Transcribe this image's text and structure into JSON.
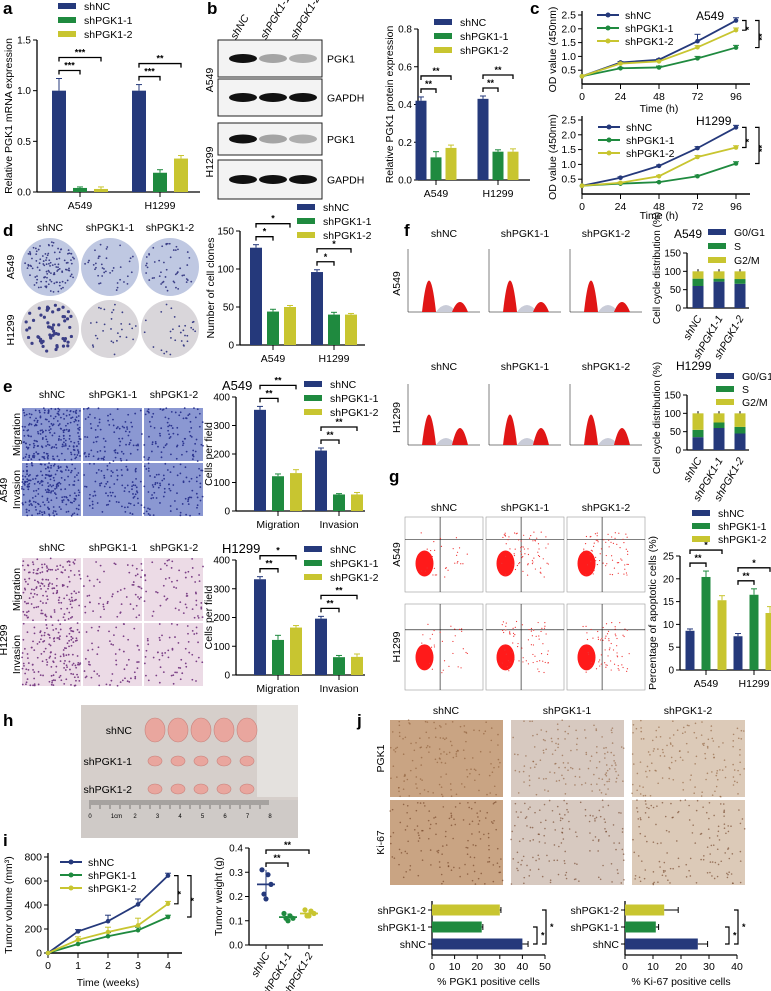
{
  "figure": {
    "panel_labels": [
      "a",
      "b",
      "c",
      "d",
      "e",
      "f",
      "g",
      "h",
      "i",
      "j"
    ]
  },
  "series_colors": [
    "#25397b",
    "#1f8a3f",
    "#c8c530"
  ],
  "groups": [
    "shNC",
    "shPGK1-1",
    "shPGK1-2"
  ],
  "blot": {
    "lanes": [
      "shNC",
      "shPGK1-1",
      "shPGK1-2"
    ],
    "cell_lines": [
      "A549",
      "H1299"
    ],
    "proteins": [
      "PGK1",
      "GAPDH"
    ]
  },
  "colony": {
    "columns": [
      "shNC",
      "shPGK1-1",
      "shPGK1-2"
    ],
    "rows": [
      "A549",
      "H1299"
    ]
  },
  "transwell": {
    "columns": [
      "shNC",
      "shPGK1-1",
      "shPGK1-2"
    ],
    "rows": [
      "Migration",
      "Invasion"
    ],
    "cell_lines": [
      "A549",
      "H1299"
    ]
  },
  "flow_cycle": {
    "columns": [
      "shNC",
      "shPGK1-1",
      "shPGK1-2"
    ],
    "rows": [
      "A549",
      "H1299"
    ]
  },
  "apoptosis": {
    "columns": [
      "shNC",
      "shPGK1-1",
      "shPGK1-2"
    ],
    "rows": [
      "A549",
      "H1299"
    ]
  },
  "tumor_photo": {
    "rows": [
      "shNC",
      "shPGK1-1",
      "shPGK1-2"
    ],
    "ruler": [
      "0",
      "1cm",
      "2",
      "3",
      "4",
      "5",
      "6",
      "7",
      "8"
    ]
  },
  "ihc": {
    "columns": [
      "shNC",
      "shPGK1-1",
      "shPGK1-2"
    ],
    "rows": [
      "PGK1",
      "Ki-67"
    ]
  },
  "chart_data": [
    {
      "id": "a",
      "type": "bar",
      "title": "",
      "categories": [
        "A549",
        "H1299"
      ],
      "ylabel": "Relative PGK1 mRNA expression",
      "ylim": [
        0,
        1.5
      ],
      "yticks": [
        "0.0",
        "0.5",
        "1.0",
        "1.5"
      ],
      "series": [
        {
          "name": "shNC",
          "values": [
            1.0,
            1.0
          ],
          "errors": [
            0.12,
            0.06
          ]
        },
        {
          "name": "shPGK1-1",
          "values": [
            0.04,
            0.19
          ],
          "errors": [
            0.01,
            0.03
          ]
        },
        {
          "name": "shPGK1-2",
          "values": [
            0.03,
            0.33
          ],
          "errors": [
            0.02,
            0.03
          ]
        }
      ],
      "significance": [
        {
          "category": "A549",
          "compare": "shPGK1-1",
          "label": "***"
        },
        {
          "category": "A549",
          "compare": "shPGK1-2",
          "label": "***"
        },
        {
          "category": "H1299",
          "compare": "shPGK1-1",
          "label": "***"
        },
        {
          "category": "H1299",
          "compare": "shPGK1-2",
          "label": "**"
        }
      ]
    },
    {
      "id": "b",
      "type": "bar",
      "title": "",
      "categories": [
        "A549",
        "H1299"
      ],
      "ylabel": "Relative PGK1 protein expression",
      "ylim": [
        0,
        0.8
      ],
      "yticks": [
        "0.0",
        "0.2",
        "0.4",
        "0.6",
        "0.8"
      ],
      "series": [
        {
          "name": "shNC",
          "values": [
            0.42,
            0.43
          ],
          "errors": [
            0.02,
            0.015
          ]
        },
        {
          "name": "shPGK1-1",
          "values": [
            0.12,
            0.15
          ],
          "errors": [
            0.03,
            0.01
          ]
        },
        {
          "name": "shPGK1-2",
          "values": [
            0.17,
            0.15
          ],
          "errors": [
            0.015,
            0.015
          ]
        }
      ],
      "significance": [
        {
          "category": "A549",
          "compare": "shPGK1-1",
          "label": "**"
        },
        {
          "category": "A549",
          "compare": "shPGK1-2",
          "label": "**"
        },
        {
          "category": "H1299",
          "compare": "shPGK1-1",
          "label": "**"
        },
        {
          "category": "H1299",
          "compare": "shPGK1-2",
          "label": "**"
        }
      ]
    },
    {
      "id": "c-a549",
      "type": "line",
      "title": "A549",
      "xlabel": "Time (h)",
      "ylabel": "OD value (450nm)",
      "x": [
        0,
        24,
        48,
        72,
        96
      ],
      "xlim": [
        0,
        96
      ],
      "ylim": [
        0,
        2.5
      ],
      "xticks": [
        "0",
        "24",
        "48",
        "72",
        "96"
      ],
      "yticks": [
        "0.5",
        "1.0",
        "1.5",
        "2.0",
        "2.5"
      ],
      "series": [
        {
          "name": "shNC",
          "values": [
            0.28,
            0.78,
            0.88,
            1.55,
            2.3
          ],
          "errors": [
            0,
            0.03,
            0.03,
            0.25,
            0.1
          ]
        },
        {
          "name": "shPGK1-1",
          "values": [
            0.28,
            0.57,
            0.6,
            0.93,
            1.32
          ],
          "errors": [
            0,
            0.03,
            0.05,
            0.07,
            0.08
          ]
        },
        {
          "name": "shPGK1-2",
          "values": [
            0.28,
            0.74,
            0.82,
            1.33,
            1.95
          ],
          "errors": [
            0,
            0.03,
            0.03,
            0.06,
            0.08
          ]
        }
      ],
      "significance": [
        {
          "compare": "shPGK1-2",
          "label": "*"
        },
        {
          "compare": "shPGK1-1",
          "label": "**"
        }
      ]
    },
    {
      "id": "c-h1299",
      "type": "line",
      "title": "H1299",
      "xlabel": "Time (h)",
      "ylabel": "OD value (450nm)",
      "x": [
        0,
        24,
        48,
        72,
        96
      ],
      "xlim": [
        0,
        96
      ],
      "ylim": [
        0,
        2.5
      ],
      "xticks": [
        "0",
        "24",
        "48",
        "72",
        "96"
      ],
      "yticks": [
        "0.5",
        "1.0",
        "1.5",
        "2.0",
        "2.5"
      ],
      "series": [
        {
          "name": "shNC",
          "values": [
            0.28,
            0.55,
            0.95,
            1.55,
            2.25
          ],
          "errors": [
            0,
            0.03,
            0.03,
            0.05,
            0.07
          ]
        },
        {
          "name": "shPGK1-1",
          "values": [
            0.28,
            0.35,
            0.4,
            0.6,
            1.03
          ],
          "errors": [
            0,
            0.02,
            0.02,
            0.04,
            0.06
          ]
        },
        {
          "name": "shPGK1-2",
          "values": [
            0.28,
            0.38,
            0.6,
            1.25,
            1.57
          ],
          "errors": [
            0,
            0.02,
            0.03,
            0.05,
            0.06
          ]
        }
      ],
      "significance": [
        {
          "compare": "shPGK1-2",
          "label": "*"
        },
        {
          "compare": "shPGK1-1",
          "label": "**"
        }
      ]
    },
    {
      "id": "d",
      "type": "bar",
      "title": "",
      "categories": [
        "A549",
        "H1299"
      ],
      "ylabel": "Number of cell clones",
      "ylim": [
        0,
        150
      ],
      "yticks": [
        "0",
        "50",
        "100",
        "150"
      ],
      "series": [
        {
          "name": "shNC",
          "values": [
            128,
            96
          ],
          "errors": [
            4,
            3
          ]
        },
        {
          "name": "shPGK1-1",
          "values": [
            44,
            40
          ],
          "errors": [
            3,
            3
          ]
        },
        {
          "name": "shPGK1-2",
          "values": [
            50,
            40
          ],
          "errors": [
            2,
            1.5
          ]
        }
      ],
      "significance": [
        {
          "category": "A549",
          "compare": "shPGK1-1",
          "label": "*"
        },
        {
          "category": "A549",
          "compare": "shPGK1-2",
          "label": "*"
        },
        {
          "category": "H1299",
          "compare": "shPGK1-1",
          "label": "*"
        },
        {
          "category": "H1299",
          "compare": "shPGK1-2",
          "label": "*"
        }
      ]
    },
    {
      "id": "e-a549",
      "type": "bar",
      "title": "A549",
      "categories": [
        "Migration",
        "Invasion"
      ],
      "ylabel": "Cells per field",
      "ylim": [
        0,
        400
      ],
      "yticks": [
        "0",
        "100",
        "200",
        "300",
        "400"
      ],
      "series": [
        {
          "name": "shNC",
          "values": [
            355,
            212
          ],
          "errors": [
            12,
            9
          ]
        },
        {
          "name": "shPGK1-1",
          "values": [
            122,
            58
          ],
          "errors": [
            8,
            3
          ]
        },
        {
          "name": "shPGK1-2",
          "values": [
            133,
            58
          ],
          "errors": [
            12,
            7
          ]
        }
      ],
      "significance": [
        {
          "category": "Migration",
          "compare": "shPGK1-1",
          "label": "**"
        },
        {
          "category": "Migration",
          "compare": "shPGK1-2",
          "label": "**"
        },
        {
          "category": "Invasion",
          "compare": "shPGK1-1",
          "label": "**"
        },
        {
          "category": "Invasion",
          "compare": "shPGK1-2",
          "label": "**"
        }
      ]
    },
    {
      "id": "e-h1299",
      "type": "bar",
      "title": "H1299",
      "categories": [
        "Migration",
        "Invasion"
      ],
      "ylabel": "Cells per field",
      "ylim": [
        0,
        400
      ],
      "yticks": [
        "0",
        "100",
        "200",
        "300",
        "400"
      ],
      "series": [
        {
          "name": "shNC",
          "values": [
            333,
            196
          ],
          "errors": [
            9,
            8
          ]
        },
        {
          "name": "shPGK1-1",
          "values": [
            122,
            62
          ],
          "errors": [
            16,
            6
          ]
        },
        {
          "name": "shPGK1-2",
          "values": [
            165,
            63
          ],
          "errors": [
            7,
            10
          ]
        }
      ],
      "significance": [
        {
          "category": "Migration",
          "compare": "shPGK1-1",
          "label": "**"
        },
        {
          "category": "Migration",
          "compare": "shPGK1-2",
          "label": "*"
        },
        {
          "category": "Invasion",
          "compare": "shPGK1-1",
          "label": "**"
        },
        {
          "category": "Invasion",
          "compare": "shPGK1-2",
          "label": "**"
        }
      ]
    },
    {
      "id": "f-a549",
      "type": "bar",
      "stacked": true,
      "title": "A549",
      "categories": [
        "shNC",
        "shPGK1-1",
        "shPGK1-2"
      ],
      "ylabel": "Cell cycle distribution (%)",
      "ylim": [
        0,
        150
      ],
      "yticks": [
        "0",
        "50",
        "100",
        "150"
      ],
      "series": [
        {
          "name": "G0/G1",
          "values": [
            60,
            72,
            66
          ]
        },
        {
          "name": "S",
          "values": [
            20,
            8,
            13
          ]
        },
        {
          "name": "G2/M",
          "values": [
            20,
            20,
            21
          ]
        }
      ]
    },
    {
      "id": "f-h1299",
      "type": "bar",
      "stacked": true,
      "title": "H1299",
      "categories": [
        "shNC",
        "shPGK1-1",
        "shPGK1-2"
      ],
      "ylabel": "Cell cycle distribution (%)",
      "ylim": [
        0,
        150
      ],
      "yticks": [
        "0",
        "50",
        "100",
        "150"
      ],
      "series": [
        {
          "name": "G0/G1",
          "values": [
            35,
            60,
            45
          ]
        },
        {
          "name": "S",
          "values": [
            20,
            15,
            18
          ]
        },
        {
          "name": "G2/M",
          "values": [
            45,
            25,
            37
          ]
        }
      ]
    },
    {
      "id": "g",
      "type": "bar",
      "title": "",
      "categories": [
        "A549",
        "H1299"
      ],
      "ylabel": "Percentage of apoptotic cells (%)",
      "ylim": [
        0,
        25
      ],
      "yticks": [
        "0",
        "5",
        "10",
        "15",
        "20",
        "25"
      ],
      "series": [
        {
          "name": "shNC",
          "values": [
            8.6,
            7.4
          ],
          "errors": [
            0.4,
            0.6
          ]
        },
        {
          "name": "shPGK1-1",
          "values": [
            20.4,
            16.5
          ],
          "errors": [
            1.3,
            1.3
          ]
        },
        {
          "name": "shPGK1-2",
          "values": [
            15.3,
            12.5
          ],
          "errors": [
            1.0,
            1.4
          ]
        }
      ],
      "significance": [
        {
          "category": "A549",
          "compare": "shPGK1-1",
          "label": "**"
        },
        {
          "category": "A549",
          "compare": "shPGK1-2",
          "label": "*"
        },
        {
          "category": "H1299",
          "compare": "shPGK1-1",
          "label": "**"
        },
        {
          "category": "H1299",
          "compare": "shPGK1-2",
          "label": "*"
        }
      ]
    },
    {
      "id": "i-volume",
      "type": "line",
      "title": "",
      "xlabel": "Time (weeks)",
      "ylabel": "Tumor volume (mm³)",
      "x": [
        0,
        1,
        2,
        3,
        4
      ],
      "xlim": [
        0,
        4
      ],
      "ylim": [
        0,
        800
      ],
      "xticks": [
        "0",
        "1",
        "2",
        "3",
        "4"
      ],
      "yticks": [
        "0",
        "200",
        "400",
        "600",
        "800"
      ],
      "series": [
        {
          "name": "shNC",
          "values": [
            0,
            180,
            265,
            405,
            645
          ],
          "errors": [
            0,
            15,
            50,
            45,
            20
          ]
        },
        {
          "name": "shPGK1-1",
          "values": [
            0,
            75,
            140,
            190,
            300
          ],
          "errors": [
            0,
            30,
            30,
            25,
            15
          ]
        },
        {
          "name": "shPGK1-2",
          "values": [
            0,
            110,
            175,
            230,
            410
          ],
          "errors": [
            0,
            25,
            40,
            60,
            20
          ]
        }
      ],
      "significance": [
        {
          "compare": "shPGK1-2",
          "label": "*"
        },
        {
          "compare": "shPGK1-1",
          "label": "*"
        }
      ]
    },
    {
      "id": "i-weight",
      "type": "scatter",
      "title": "",
      "categories": [
        "shNC",
        "shPGK1-1",
        "shPGK1-2"
      ],
      "ylabel": "Tumor weight (g)",
      "ylim": [
        0,
        0.4
      ],
      "yticks": [
        "0.0",
        "0.1",
        "0.2",
        "0.3",
        "0.4"
      ],
      "points": [
        [
          0.31,
          0.29,
          0.25,
          0.21,
          0.19
        ],
        [
          0.13,
          0.12,
          0.11,
          0.11,
          0.1
        ],
        [
          0.145,
          0.14,
          0.13,
          0.12,
          0.12
        ]
      ],
      "means": [
        0.25,
        0.115,
        0.13
      ],
      "significance": [
        {
          "compare": "shPGK1-1",
          "label": "**"
        },
        {
          "compare": "shPGK1-2",
          "label": "**"
        }
      ]
    },
    {
      "id": "j-pgk1",
      "type": "bar",
      "orientation": "horizontal",
      "title": "",
      "categories": [
        "shPGK1-2",
        "shPGK1-1",
        "shNC"
      ],
      "values": [
        30,
        22,
        40
      ],
      "errors": [
        0.5,
        0.5,
        2.5
      ],
      "xlabel": "%  PGK1 positive cells",
      "xlim": [
        0,
        50
      ],
      "xticks": [
        "0",
        "10",
        "20",
        "30",
        "40",
        "50"
      ],
      "significance": [
        {
          "compare": "shPGK1-1",
          "label": "*"
        },
        {
          "compare": "shPGK1-2",
          "label": "*"
        }
      ]
    },
    {
      "id": "j-ki67",
      "type": "bar",
      "orientation": "horizontal",
      "title": "",
      "categories": [
        "shPGK1-2",
        "shPGK1-1",
        "shNC"
      ],
      "values": [
        14,
        11,
        26
      ],
      "errors": [
        5,
        1,
        3.5
      ],
      "xlabel": "%  Ki-67 positive cells",
      "xlim": [
        0,
        40
      ],
      "xticks": [
        "0",
        "10",
        "20",
        "30",
        "40"
      ],
      "significance": [
        {
          "compare": "shPGK1-1",
          "label": "*"
        },
        {
          "compare": "shPGK1-2",
          "label": "*"
        }
      ]
    }
  ]
}
